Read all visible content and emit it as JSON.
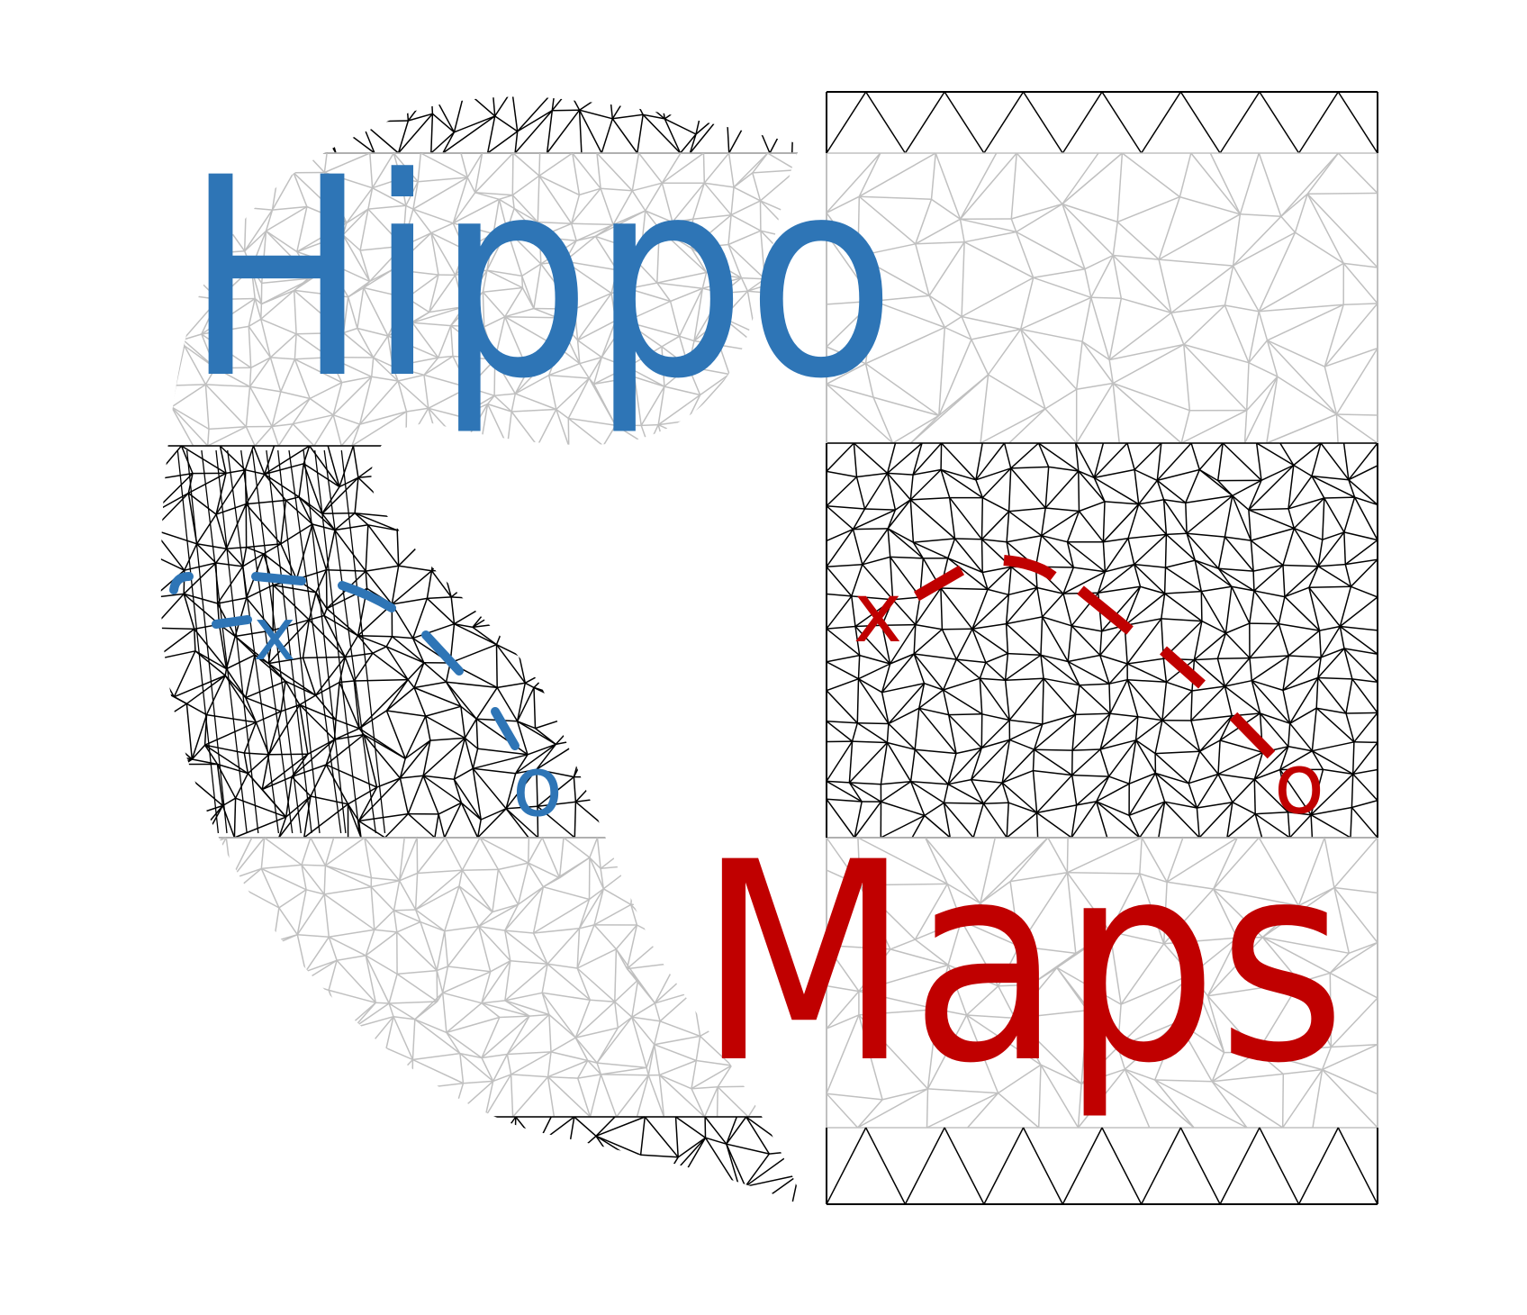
{
  "logo": {
    "word_top": "Hippo",
    "word_bottom": "Maps",
    "left_start_marker": "x",
    "left_end_marker": "o",
    "right_start_marker": "x",
    "right_end_marker": "o"
  },
  "colors": {
    "background": "#ffffff",
    "word_top": "#2e75b6",
    "word_bottom": "#c00000",
    "mesh_dark": "#000000",
    "mesh_light": "#c0c0c0",
    "path_left": "#2e75b6",
    "path_right": "#c00000"
  },
  "icons": {
    "left_mesh": "folded-hippocampus-surface-mesh",
    "right_mesh": "unfolded-rectangular-mesh"
  }
}
